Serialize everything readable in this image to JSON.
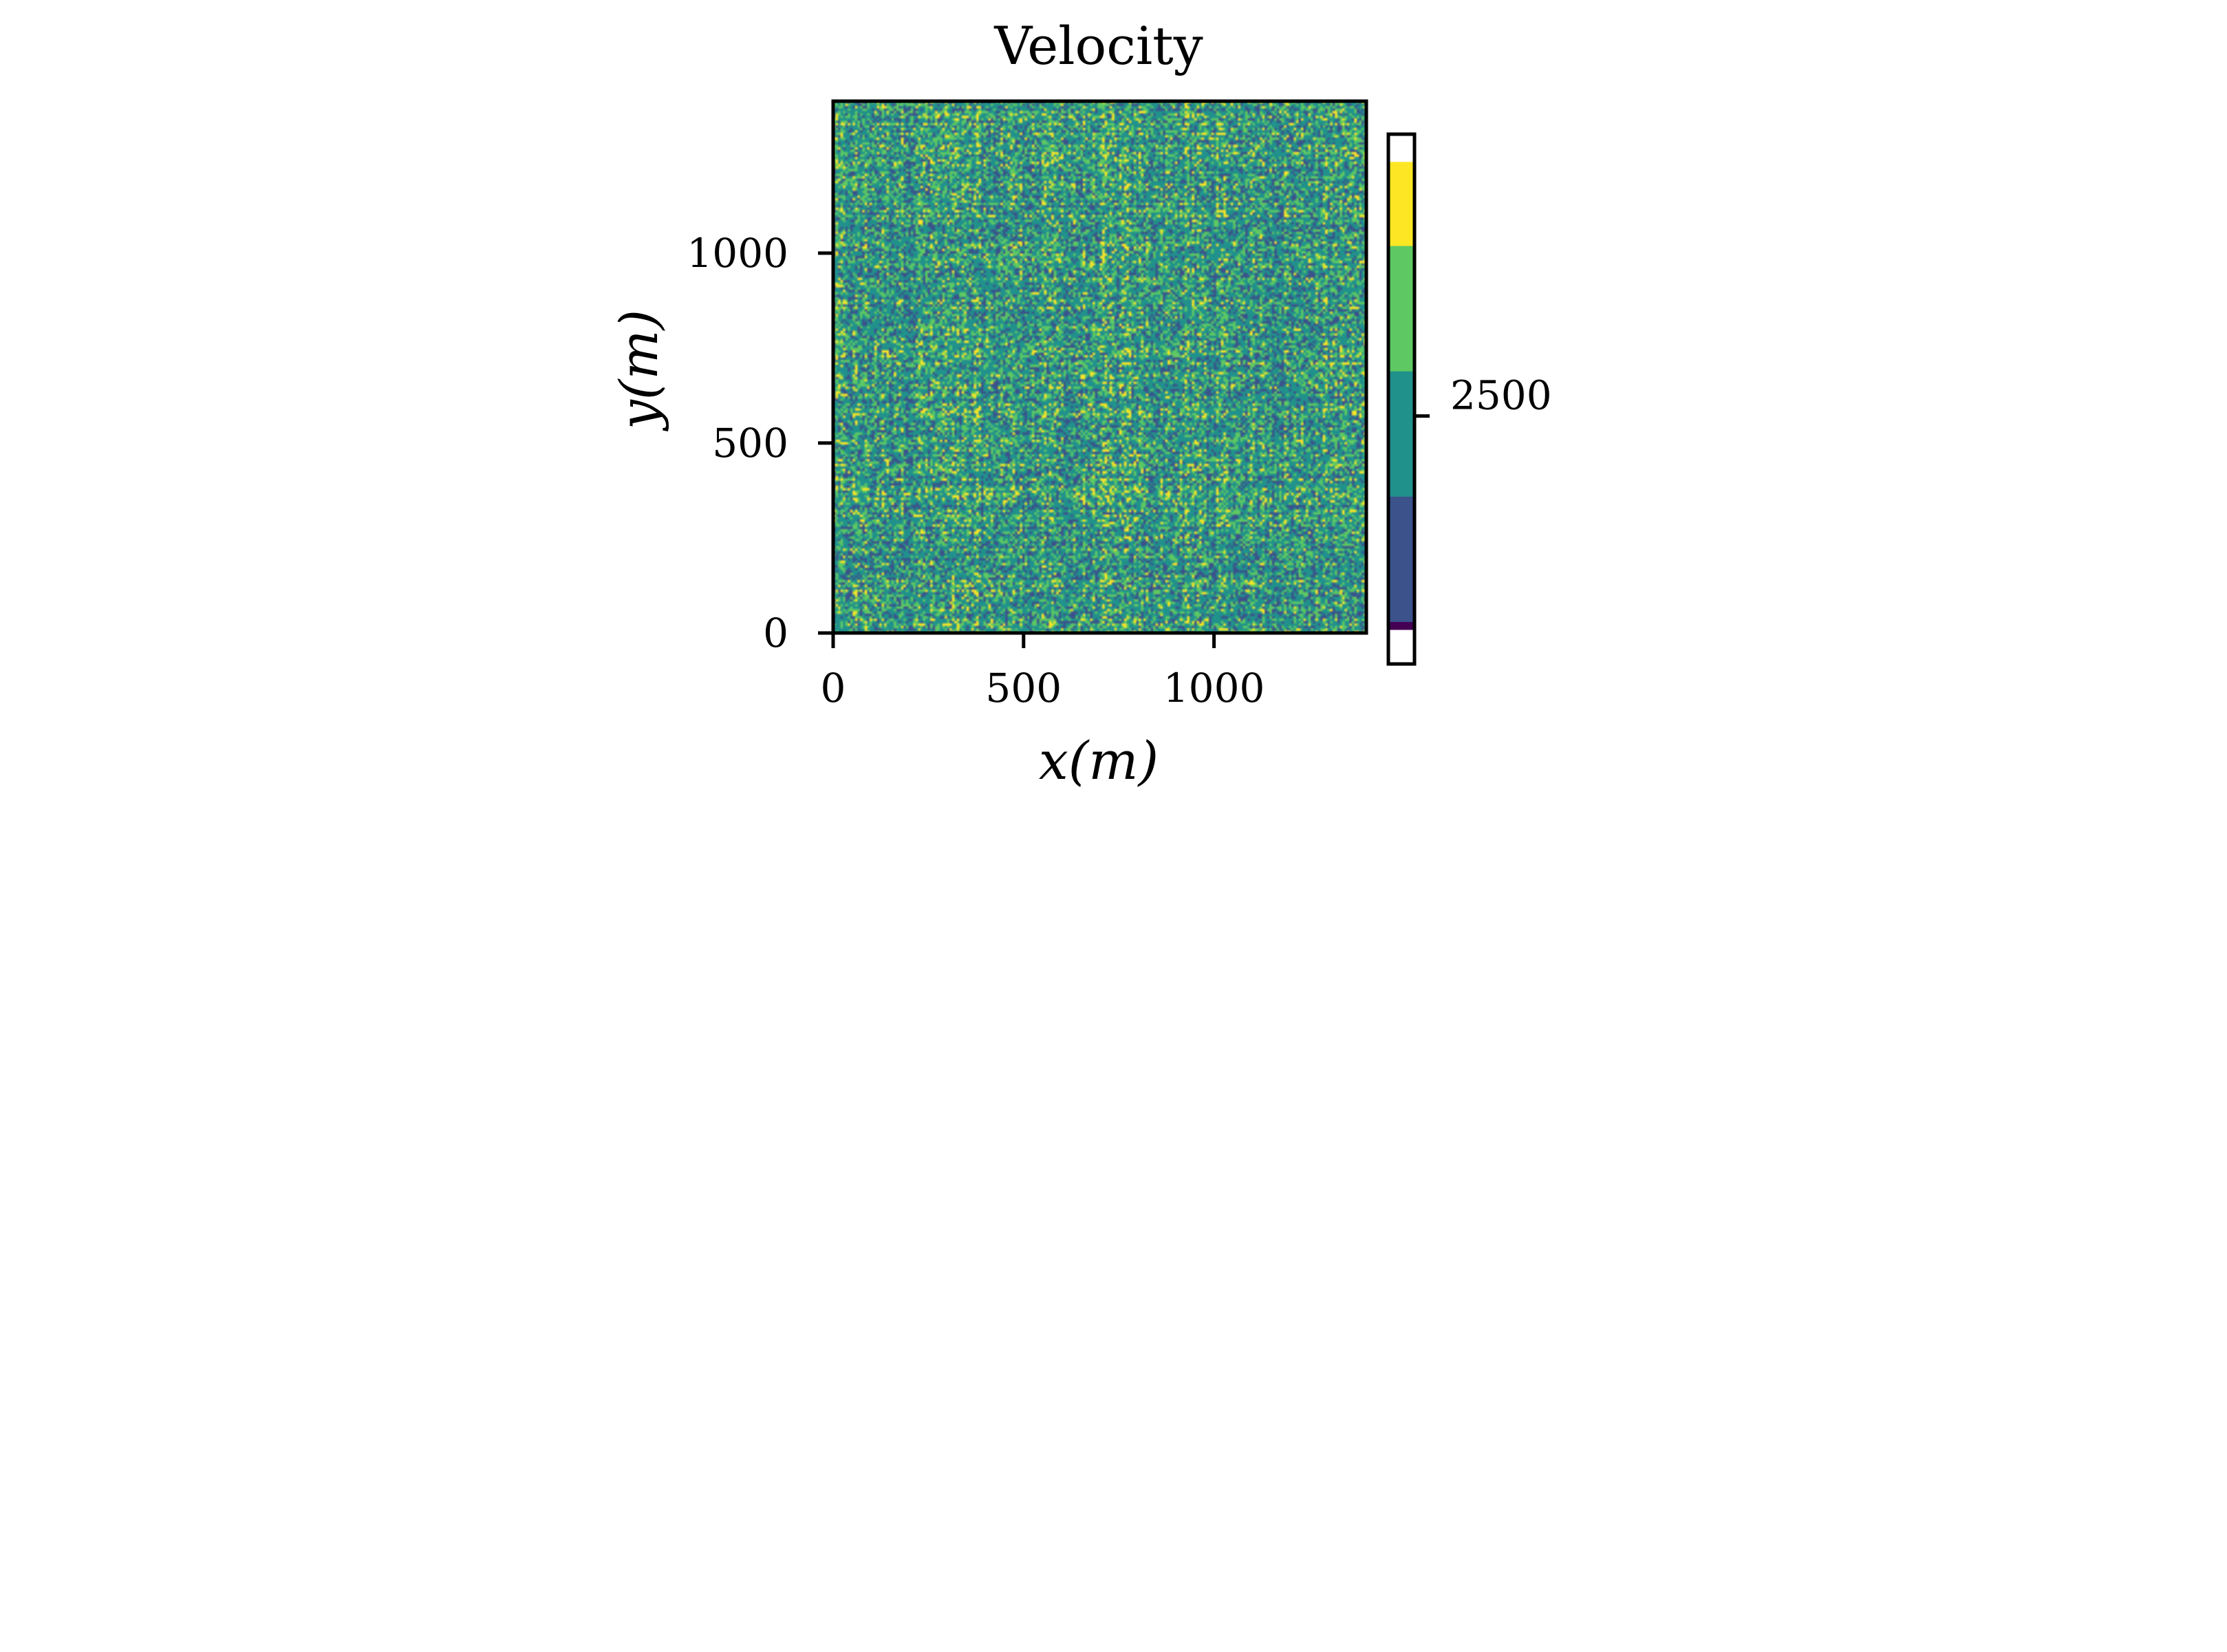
{
  "chart_data": {
    "type": "heatmap",
    "title": "Velocity",
    "xlabel": "x(m)",
    "ylabel": "y(m)",
    "xlim": [
      0,
      1400
    ],
    "ylim": [
      0,
      1400
    ],
    "xticks": [
      0,
      500,
      1000
    ],
    "yticks": [
      0,
      500,
      1000
    ],
    "xtick_labels": [
      "0",
      "500",
      "1000"
    ],
    "ytick_labels": [
      "0",
      "500",
      "1000"
    ],
    "colormap": "viridis",
    "grid": false,
    "field_description_colors": [
      "#3b528b",
      "#21918c",
      "#5ec962",
      "#fde725"
    ],
    "colorbar": {
      "ticks": [
        2500
      ],
      "tick_labels": [
        "2500"
      ],
      "extend": "min",
      "bands": [
        {
          "color": "#440154",
          "fraction": 0.016
        },
        {
          "color": "#3b528b",
          "fraction": 0.253
        },
        {
          "color": "#21918c",
          "fraction": 0.253
        },
        {
          "color": "#5ec962",
          "fraction": 0.253
        },
        {
          "color": "#fde725",
          "fraction": 0.169
        }
      ],
      "under_color": "#ffffff",
      "tick_fraction": 0.431
    }
  }
}
